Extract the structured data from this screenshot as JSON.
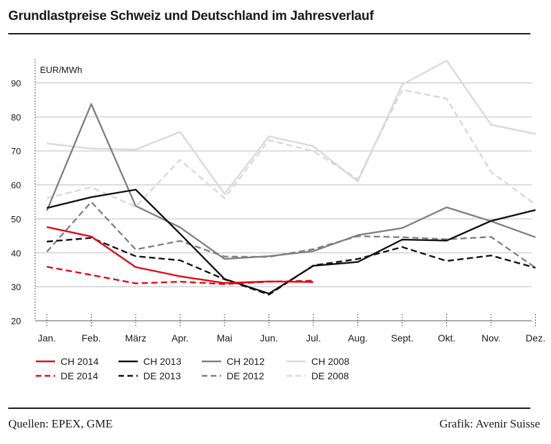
{
  "header": {
    "title": "Grundlastpreise Schweiz und Deutschland im Jahresverlauf"
  },
  "footer": {
    "source": "Quellen: EPEX, GME",
    "credit": "Grafik: Avenir Suisse"
  },
  "chart_data": {
    "type": "line",
    "title": "Grundlastpreise Schweiz und Deutschland im Jahresverlauf",
    "ylabel": "EUR/MWh",
    "xlabel": "",
    "ylim": [
      20,
      97
    ],
    "yticks": [
      20,
      30,
      40,
      50,
      60,
      70,
      80,
      90
    ],
    "grid": true,
    "legend_position": "bottom",
    "categories": [
      "Jan.",
      "Feb.",
      "März",
      "Apr.",
      "Mai",
      "Jun.",
      "Jul.",
      "Aug.",
      "Sept.",
      "Okt.",
      "Nov.",
      "Dez."
    ],
    "series": [
      {
        "name": "CH 2008",
        "color": "#d9d9d9",
        "dash": false,
        "values": [
          72.2,
          70.7,
          70.4,
          75.6,
          57.3,
          74.3,
          71.4,
          61.0,
          89.5,
          96.6,
          77.7,
          75.0
        ]
      },
      {
        "name": "DE 2008",
        "color": "#d9d9d9",
        "dash": true,
        "values": [
          56.1,
          59.3,
          53.6,
          67.4,
          56.1,
          73.2,
          69.9,
          61.7,
          88.0,
          85.4,
          63.8,
          54.2
        ]
      },
      {
        "name": "CH 2012",
        "color": "#808080",
        "dash": false,
        "values": [
          52.4,
          83.8,
          53.8,
          47.5,
          38.2,
          39.0,
          40.5,
          45.2,
          47.3,
          53.4,
          49.3,
          44.6
        ]
      },
      {
        "name": "DE 2012",
        "color": "#808080",
        "dash": true,
        "values": [
          40.3,
          55.0,
          41.0,
          43.5,
          38.9,
          38.8,
          41.1,
          44.9,
          44.6,
          44.0,
          44.7,
          35.6
        ]
      },
      {
        "name": "CH 2013",
        "color": "#111111",
        "dash": false,
        "values": [
          53.2,
          56.4,
          58.6,
          45.6,
          32.3,
          28.0,
          36.2,
          37.3,
          43.9,
          43.6,
          49.4,
          52.6
        ]
      },
      {
        "name": "DE 2013",
        "color": "#111111",
        "dash": true,
        "values": [
          43.3,
          44.4,
          39.0,
          37.8,
          32.2,
          27.7,
          36.3,
          38.2,
          41.7,
          37.6,
          39.2,
          35.6
        ]
      },
      {
        "name": "CH 2014",
        "color": "#e30613",
        "dash": false,
        "values": [
          47.6,
          44.8,
          35.8,
          33.1,
          31.1,
          31.6,
          31.4,
          null,
          null,
          null,
          null,
          null
        ]
      },
      {
        "name": "DE 2014",
        "color": "#e30613",
        "dash": true,
        "values": [
          35.9,
          33.5,
          31.0,
          31.5,
          30.8,
          31.5,
          31.8,
          null,
          null,
          null,
          null,
          null
        ]
      }
    ],
    "legend_rows": [
      [
        "CH 2014",
        "CH 2013",
        "CH 2012",
        "CH 2008"
      ],
      [
        "DE 2014",
        "DE 2013",
        "DE 2012",
        "DE 2008"
      ]
    ]
  }
}
